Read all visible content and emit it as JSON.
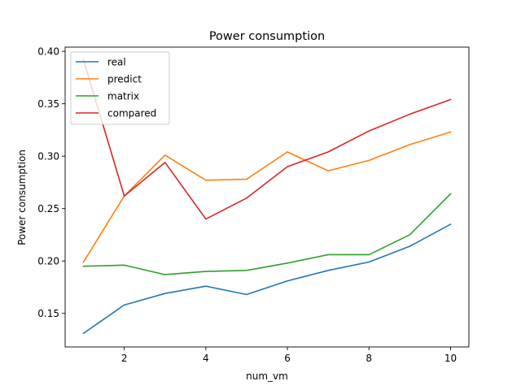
{
  "chart_data": {
    "type": "line",
    "title": "Power consumption",
    "xlabel": "num_vm",
    "ylabel": "Power consumption",
    "x": [
      1,
      2,
      3,
      4,
      5,
      6,
      7,
      8,
      9,
      10
    ],
    "xticks": [
      2,
      4,
      6,
      8,
      10
    ],
    "xtick_labels": [
      "2",
      "4",
      "6",
      "8",
      "10"
    ],
    "yticks": [
      0.15,
      0.2,
      0.25,
      0.3,
      0.35,
      0.4
    ],
    "ytick_labels": [
      "0.15",
      "0.20",
      "0.25",
      "0.30",
      "0.35",
      "0.40"
    ],
    "xlim": [
      0.55,
      10.45
    ],
    "ylim": [
      0.118,
      0.404
    ],
    "grid": false,
    "legend_position": "upper-left",
    "series": [
      {
        "name": "real",
        "color": "#1f77b4",
        "values": [
          0.131,
          0.158,
          0.169,
          0.176,
          0.168,
          0.181,
          0.191,
          0.199,
          0.214,
          0.235
        ]
      },
      {
        "name": "predict",
        "color": "#ff7f0e",
        "values": [
          0.199,
          0.262,
          0.301,
          0.277,
          0.278,
          0.304,
          0.286,
          0.296,
          0.311,
          0.323
        ]
      },
      {
        "name": "matrix",
        "color": "#2ca02c",
        "values": [
          0.195,
          0.196,
          0.187,
          0.19,
          0.191,
          0.198,
          0.206,
          0.206,
          0.225,
          0.264
        ]
      },
      {
        "name": "compared",
        "color": "#d62728",
        "values": [
          0.392,
          0.262,
          0.294,
          0.24,
          0.26,
          0.29,
          0.304,
          0.324,
          0.34,
          0.354
        ]
      }
    ]
  }
}
